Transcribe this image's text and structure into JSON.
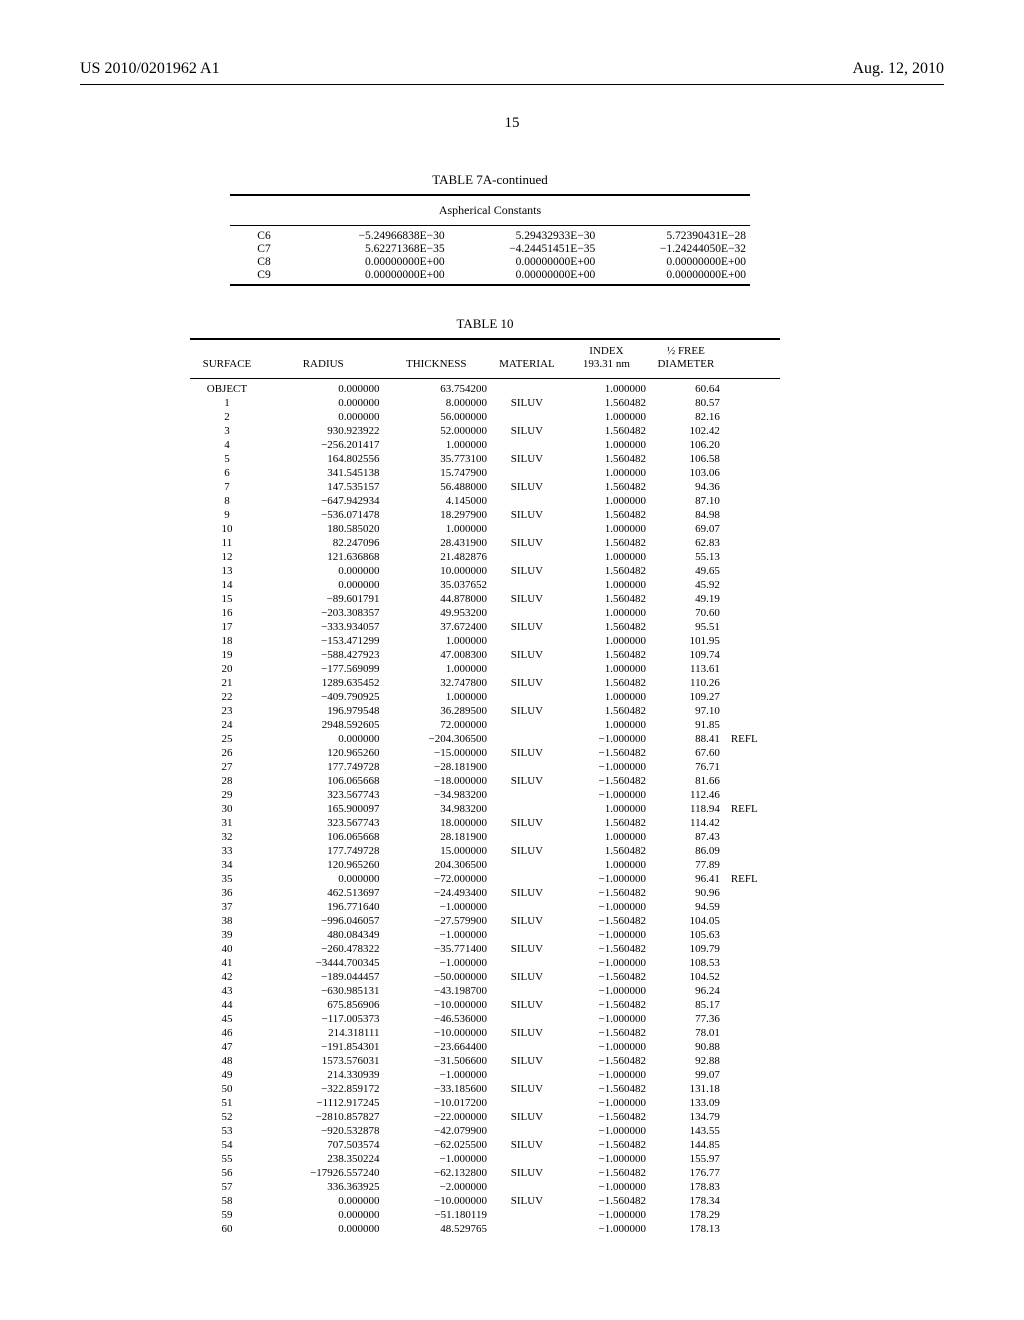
{
  "header": {
    "pub_no": "US 2010/0201962 A1",
    "date": "Aug. 12, 2010"
  },
  "page_number": "15",
  "table7a": {
    "title": "TABLE 7A-continued",
    "subtitle": "Aspherical Constants",
    "rows": [
      [
        "C6",
        "−5.24966838E−30",
        "5.29432933E−30",
        "5.72390431E−28"
      ],
      [
        "C7",
        "5.62271368E−35",
        "−4.24451451E−35",
        "−1.24244050E−32"
      ],
      [
        "C8",
        "0.00000000E+00",
        "0.00000000E+00",
        "0.00000000E+00"
      ],
      [
        "C9",
        "0.00000000E+00",
        "0.00000000E+00",
        "0.00000000E+00"
      ]
    ]
  },
  "table10": {
    "title": "TABLE 10",
    "columns": [
      "SURFACE",
      "RADIUS",
      "THICKNESS",
      "MATERIAL",
      "INDEX\n193.31 nm",
      "½ FREE\nDIAMETER",
      ""
    ],
    "col_index_l1": "INDEX",
    "col_index_l2": "193.31 nm",
    "col_free_l1": "½ FREE",
    "col_free_l2": "DIAMETER",
    "rows": [
      [
        "OBJECT",
        "0.000000",
        "63.754200",
        "",
        "1.000000",
        "60.64",
        ""
      ],
      [
        "1",
        "0.000000",
        "8.000000",
        "SILUV",
        "1.560482",
        "80.57",
        ""
      ],
      [
        "2",
        "0.000000",
        "56.000000",
        "",
        "1.000000",
        "82.16",
        ""
      ],
      [
        "3",
        "930.923922",
        "52.000000",
        "SILUV",
        "1.560482",
        "102.42",
        ""
      ],
      [
        "4",
        "−256.201417",
        "1.000000",
        "",
        "1.000000",
        "106.20",
        ""
      ],
      [
        "5",
        "164.802556",
        "35.773100",
        "SILUV",
        "1.560482",
        "106.58",
        ""
      ],
      [
        "6",
        "341.545138",
        "15.747900",
        "",
        "1.000000",
        "103.06",
        ""
      ],
      [
        "7",
        "147.535157",
        "56.488000",
        "SILUV",
        "1.560482",
        "94.36",
        ""
      ],
      [
        "8",
        "−647.942934",
        "4.145000",
        "",
        "1.000000",
        "87.10",
        ""
      ],
      [
        "9",
        "−536.071478",
        "18.297900",
        "SILUV",
        "1.560482",
        "84.98",
        ""
      ],
      [
        "10",
        "180.585020",
        "1.000000",
        "",
        "1.000000",
        "69.07",
        ""
      ],
      [
        "11",
        "82.247096",
        "28.431900",
        "SILUV",
        "1.560482",
        "62.83",
        ""
      ],
      [
        "12",
        "121.636868",
        "21.482876",
        "",
        "1.000000",
        "55.13",
        ""
      ],
      [
        "13",
        "0.000000",
        "10.000000",
        "SILUV",
        "1.560482",
        "49.65",
        ""
      ],
      [
        "14",
        "0.000000",
        "35.037652",
        "",
        "1.000000",
        "45.92",
        ""
      ],
      [
        "15",
        "−89.601791",
        "44.878000",
        "SILUV",
        "1.560482",
        "49.19",
        ""
      ],
      [
        "16",
        "−203.308357",
        "49.953200",
        "",
        "1.000000",
        "70.60",
        ""
      ],
      [
        "17",
        "−333.934057",
        "37.672400",
        "SILUV",
        "1.560482",
        "95.51",
        ""
      ],
      [
        "18",
        "−153.471299",
        "1.000000",
        "",
        "1.000000",
        "101.95",
        ""
      ],
      [
        "19",
        "−588.427923",
        "47.008300",
        "SILUV",
        "1.560482",
        "109.74",
        ""
      ],
      [
        "20",
        "−177.569099",
        "1.000000",
        "",
        "1.000000",
        "113.61",
        ""
      ],
      [
        "21",
        "1289.635452",
        "32.747800",
        "SILUV",
        "1.560482",
        "110.26",
        ""
      ],
      [
        "22",
        "−409.790925",
        "1.000000",
        "",
        "1.000000",
        "109.27",
        ""
      ],
      [
        "23",
        "196.979548",
        "36.289500",
        "SILUV",
        "1.560482",
        "97.10",
        ""
      ],
      [
        "24",
        "2948.592605",
        "72.000000",
        "",
        "1.000000",
        "91.85",
        ""
      ],
      [
        "25",
        "0.000000",
        "−204.306500",
        "",
        "−1.000000",
        "88.41",
        "REFL"
      ],
      [
        "26",
        "120.965260",
        "−15.000000",
        "SILUV",
        "−1.560482",
        "67.60",
        ""
      ],
      [
        "27",
        "177.749728",
        "−28.181900",
        "",
        "−1.000000",
        "76.71",
        ""
      ],
      [
        "28",
        "106.065668",
        "−18.000000",
        "SILUV",
        "−1.560482",
        "81.66",
        ""
      ],
      [
        "29",
        "323.567743",
        "−34.983200",
        "",
        "−1.000000",
        "112.46",
        ""
      ],
      [
        "30",
        "165.900097",
        "34.983200",
        "",
        "1.000000",
        "118.94",
        "REFL"
      ],
      [
        "31",
        "323.567743",
        "18.000000",
        "SILUV",
        "1.560482",
        "114.42",
        ""
      ],
      [
        "32",
        "106.065668",
        "28.181900",
        "",
        "1.000000",
        "87.43",
        ""
      ],
      [
        "33",
        "177.749728",
        "15.000000",
        "SILUV",
        "1.560482",
        "86.09",
        ""
      ],
      [
        "34",
        "120.965260",
        "204.306500",
        "",
        "1.000000",
        "77.89",
        ""
      ],
      [
        "35",
        "0.000000",
        "−72.000000",
        "",
        "−1.000000",
        "96.41",
        "REFL"
      ],
      [
        "36",
        "462.513697",
        "−24.493400",
        "SILUV",
        "−1.560482",
        "90.96",
        ""
      ],
      [
        "37",
        "196.771640",
        "−1.000000",
        "",
        "−1.000000",
        "94.59",
        ""
      ],
      [
        "38",
        "−996.046057",
        "−27.579900",
        "SILUV",
        "−1.560482",
        "104.05",
        ""
      ],
      [
        "39",
        "480.084349",
        "−1.000000",
        "",
        "−1.000000",
        "105.63",
        ""
      ],
      [
        "40",
        "−260.478322",
        "−35.771400",
        "SILUV",
        "−1.560482",
        "109.79",
        ""
      ],
      [
        "41",
        "−3444.700345",
        "−1.000000",
        "",
        "−1.000000",
        "108.53",
        ""
      ],
      [
        "42",
        "−189.044457",
        "−50.000000",
        "SILUV",
        "−1.560482",
        "104.52",
        ""
      ],
      [
        "43",
        "−630.985131",
        "−43.198700",
        "",
        "−1.000000",
        "96.24",
        ""
      ],
      [
        "44",
        "675.856906",
        "−10.000000",
        "SILUV",
        "−1.560482",
        "85.17",
        ""
      ],
      [
        "45",
        "−117.005373",
        "−46.536000",
        "",
        "−1.000000",
        "77.36",
        ""
      ],
      [
        "46",
        "214.318111",
        "−10.000000",
        "SILUV",
        "−1.560482",
        "78.01",
        ""
      ],
      [
        "47",
        "−191.854301",
        "−23.664400",
        "",
        "−1.000000",
        "90.88",
        ""
      ],
      [
        "48",
        "1573.576031",
        "−31.506600",
        "SILUV",
        "−1.560482",
        "92.88",
        ""
      ],
      [
        "49",
        "214.330939",
        "−1.000000",
        "",
        "−1.000000",
        "99.07",
        ""
      ],
      [
        "50",
        "−322.859172",
        "−33.185600",
        "SILUV",
        "−1.560482",
        "131.18",
        ""
      ],
      [
        "51",
        "−1112.917245",
        "−10.017200",
        "",
        "−1.000000",
        "133.09",
        ""
      ],
      [
        "52",
        "−2810.857827",
        "−22.000000",
        "SILUV",
        "−1.560482",
        "134.79",
        ""
      ],
      [
        "53",
        "−920.532878",
        "−42.079900",
        "",
        "−1.000000",
        "143.55",
        ""
      ],
      [
        "54",
        "707.503574",
        "−62.025500",
        "SILUV",
        "−1.560482",
        "144.85",
        ""
      ],
      [
        "55",
        "238.350224",
        "−1.000000",
        "",
        "−1.000000",
        "155.97",
        ""
      ],
      [
        "56",
        "−17926.557240",
        "−62.132800",
        "SILUV",
        "−1.560482",
        "176.77",
        ""
      ],
      [
        "57",
        "336.363925",
        "−2.000000",
        "",
        "−1.000000",
        "178.83",
        ""
      ],
      [
        "58",
        "0.000000",
        "−10.000000",
        "SILUV",
        "−1.560482",
        "178.34",
        ""
      ],
      [
        "59",
        "0.000000",
        "−51.180119",
        "",
        "−1.000000",
        "178.29",
        ""
      ],
      [
        "60",
        "0.000000",
        "48.529765",
        "",
        "−1.000000",
        "178.13",
        ""
      ]
    ]
  }
}
